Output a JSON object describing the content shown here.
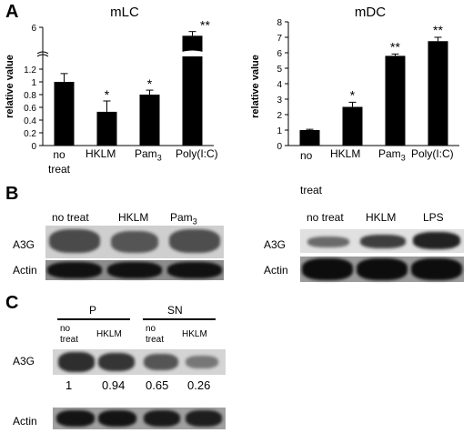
{
  "panels": {
    "a": "A",
    "b": "B",
    "c": "C"
  },
  "chart_data": [
    {
      "type": "bar",
      "title": "mLC",
      "ylabel": "relative value",
      "categories": [
        "no treat",
        "HKLM",
        "Pam3",
        "Poly(I:C)"
      ],
      "values": [
        1.0,
        0.53,
        0.8,
        5.5
      ],
      "errors": [
        0.13,
        0.17,
        0.07,
        0.25
      ],
      "significance": [
        "",
        "*",
        "*",
        "**"
      ],
      "yticks_lower": [
        "0",
        "0.2",
        "0.4",
        "0.6",
        "0.8",
        "1",
        "1.2"
      ],
      "ytick_upper": "6",
      "axis_break": true,
      "lower_range": [
        0,
        1.4
      ],
      "upper_range": [
        4.5,
        6
      ]
    },
    {
      "type": "bar",
      "title": "mDC",
      "ylabel": "relative value",
      "categories": [
        "no treat",
        "HKLM",
        "Pam3",
        "Poly(I:C)"
      ],
      "values": [
        1.0,
        2.5,
        5.8,
        6.75
      ],
      "errors": [
        0.05,
        0.3,
        0.12,
        0.25
      ],
      "significance": [
        "",
        "*",
        "**",
        "**"
      ],
      "yticks": [
        "0",
        "1",
        "2",
        "3",
        "4",
        "5",
        "6",
        "7",
        "8"
      ],
      "ylim": [
        0,
        8
      ]
    }
  ],
  "blot_b_left": {
    "lanes": [
      "no treat",
      "HKLM",
      "Pam3"
    ],
    "rows": [
      "A3G",
      "Actin"
    ]
  },
  "blot_b_right": {
    "lanes": [
      "no treat",
      "HKLM",
      "LPS"
    ],
    "rows": [
      "A3G",
      "Actin"
    ]
  },
  "blot_c": {
    "groups": [
      "P",
      "SN"
    ],
    "lanes": [
      "no treat",
      "HKLM",
      "no treat",
      "HKLM"
    ],
    "rows": [
      "A3G",
      "Actin"
    ],
    "quant": [
      "1",
      "0.94",
      "0.65",
      "0.26"
    ]
  },
  "colors": {
    "bar": "#000000",
    "axis": "#000000"
  }
}
